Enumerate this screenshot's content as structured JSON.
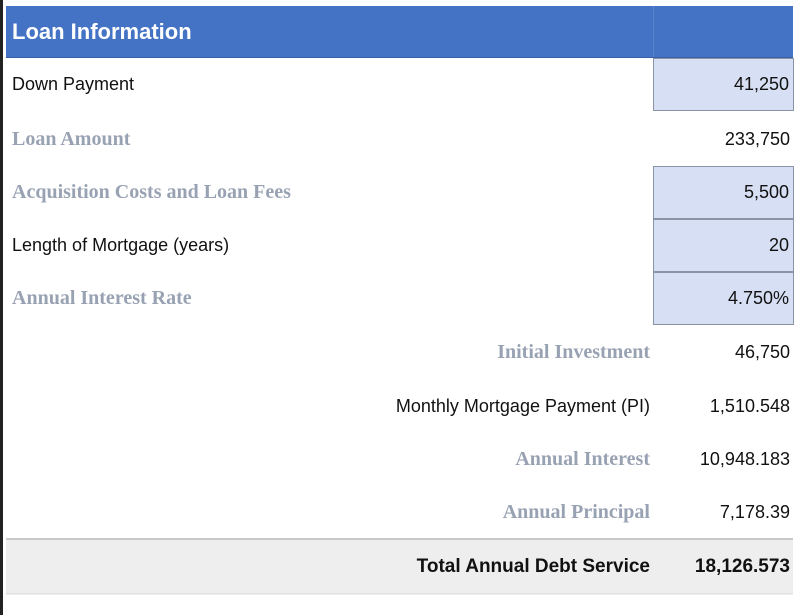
{
  "header": {
    "title": "Loan Information"
  },
  "rows": [
    {
      "label": "Down Payment",
      "value": "41,250",
      "input": true
    },
    {
      "label": "Loan Amount",
      "value": "233,750",
      "input": false
    },
    {
      "label": "Acquisition Costs and Loan Fees",
      "value": "5,500",
      "input": true
    },
    {
      "label": "Length of Mortgage (years)",
      "value": "20",
      "input": true
    },
    {
      "label": "Annual Interest Rate",
      "value": "4.750%",
      "input": true
    }
  ],
  "summary": [
    {
      "label": "Initial Investment",
      "value": "46,750"
    },
    {
      "label": "Monthly Mortgage Payment (PI)",
      "value": "1,510.548"
    },
    {
      "label": "Annual Interest",
      "value": "10,948.183"
    },
    {
      "label": "Annual Principal",
      "value": "7,178.39"
    }
  ],
  "total": {
    "label": "Total Annual Debt Service",
    "value": "18,126.573"
  }
}
